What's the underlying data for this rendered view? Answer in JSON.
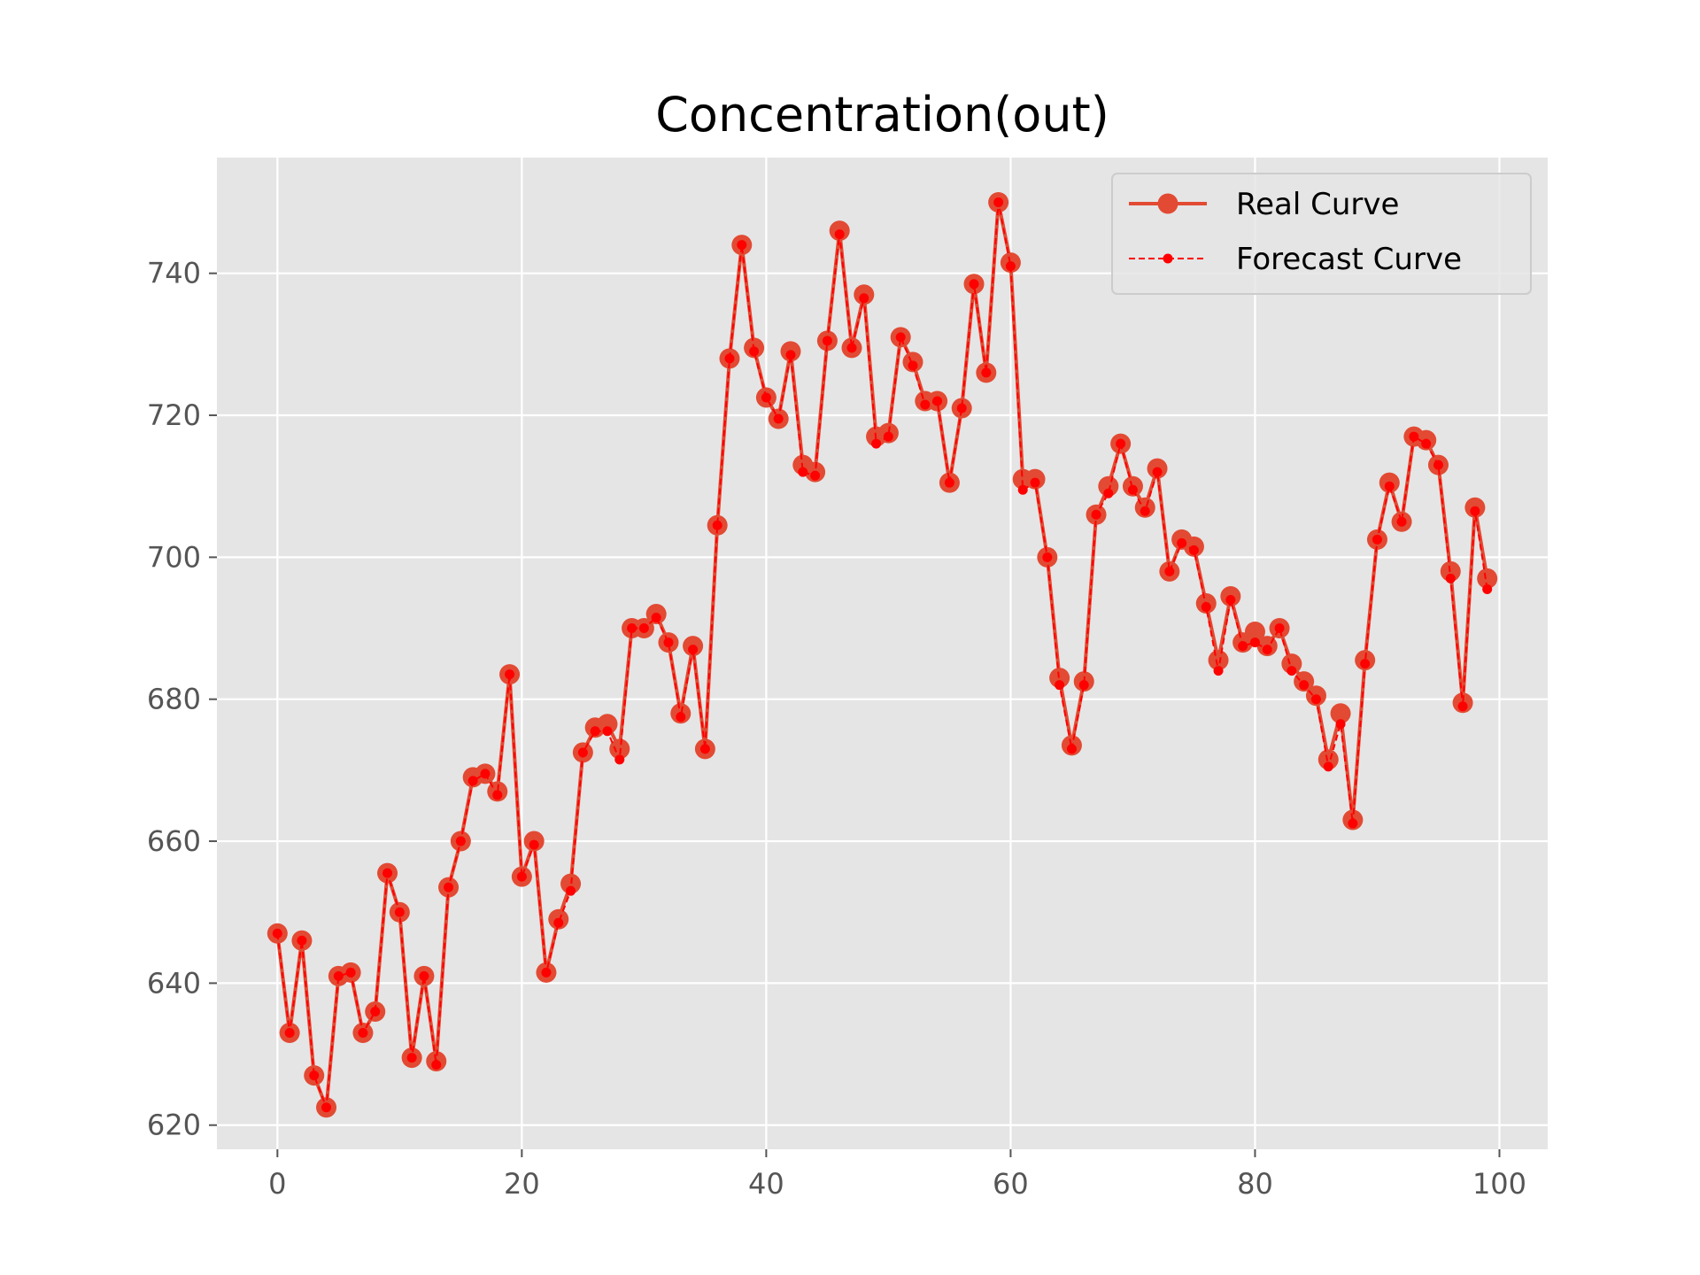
{
  "chart_data": {
    "type": "line",
    "title": "Concentration(out)",
    "xlabel": "",
    "ylabel": "",
    "xlim": [
      -4.95,
      103.95
    ],
    "ylim": [
      616.6,
      756.3
    ],
    "x_ticks": [
      0,
      20,
      40,
      60,
      80,
      100
    ],
    "y_ticks": [
      620,
      640,
      660,
      680,
      700,
      720,
      740
    ],
    "grid": true,
    "legend_position": "top-right",
    "x": [
      0,
      1,
      2,
      3,
      4,
      5,
      6,
      7,
      8,
      9,
      10,
      11,
      12,
      13,
      14,
      15,
      16,
      17,
      18,
      19,
      20,
      21,
      22,
      23,
      24,
      25,
      26,
      27,
      28,
      29,
      30,
      31,
      32,
      33,
      34,
      35,
      36,
      37,
      38,
      39,
      40,
      41,
      42,
      43,
      44,
      45,
      46,
      47,
      48,
      49,
      50,
      51,
      52,
      53,
      54,
      55,
      56,
      57,
      58,
      59,
      60,
      61,
      62,
      63,
      64,
      65,
      66,
      67,
      68,
      69,
      70,
      71,
      72,
      73,
      74,
      75,
      76,
      77,
      78,
      79,
      80,
      81,
      82,
      83,
      84,
      85,
      86,
      87,
      88,
      89,
      90,
      91,
      92,
      93,
      94,
      95,
      96,
      97,
      98,
      99
    ],
    "series": [
      {
        "name": "Real Curve",
        "color": "#E24A33",
        "values": [
          647,
          633,
          646,
          627,
          622.5,
          641,
          641.5,
          633,
          636,
          655.5,
          650,
          629.5,
          641,
          629,
          653.5,
          660,
          669,
          669.5,
          667,
          683.5,
          655,
          660,
          641.5,
          649,
          654,
          672.5,
          676,
          676.5,
          673,
          690,
          690,
          692,
          688,
          678,
          687.5,
          673,
          704.5,
          728,
          744,
          729.5,
          722.5,
          719.5,
          729,
          713,
          712,
          730.5,
          746,
          729.5,
          737,
          717,
          717.5,
          731,
          727.5,
          722,
          722,
          710.5,
          721,
          738.5,
          726,
          750,
          741.5,
          711,
          711,
          700,
          683,
          673.5,
          682.5,
          706,
          710,
          716,
          710,
          707,
          712.5,
          698,
          702.5,
          701.5,
          693.5,
          685.5,
          694.5,
          688,
          689.5,
          687.5,
          690,
          685,
          682.5,
          680.5,
          671.5,
          678,
          663,
          685.5,
          702.5,
          710.5,
          705,
          717,
          716.5,
          713,
          698,
          679.5,
          707,
          697
        ]
      },
      {
        "name": "Forecast Curve",
        "color": "#FF0000",
        "values": [
          647,
          633,
          646,
          627,
          622.5,
          641,
          641.5,
          633,
          636,
          655.5,
          650,
          629.5,
          641,
          628.5,
          653.5,
          660,
          668.5,
          669.5,
          666.5,
          683.5,
          655,
          659.5,
          641.5,
          648.5,
          653,
          672.5,
          675.5,
          675.5,
          671.5,
          690,
          690,
          691.5,
          688,
          677.5,
          687,
          673,
          704.5,
          728,
          744,
          729,
          722.5,
          719.5,
          728.5,
          712,
          711.5,
          730.5,
          745.5,
          729.5,
          736.5,
          716,
          717,
          731,
          727,
          721.5,
          722,
          710.5,
          721,
          738.5,
          726,
          750,
          741,
          709.5,
          710.5,
          700,
          682,
          673,
          682,
          706,
          709,
          716,
          709.5,
          706.5,
          712,
          698,
          702,
          701,
          693,
          684,
          694,
          687.5,
          688,
          687,
          690,
          684,
          682,
          680,
          670.5,
          676.5,
          662.5,
          685,
          702.5,
          710,
          705,
          717,
          716,
          713,
          697,
          679,
          706.5,
          695.5
        ]
      }
    ]
  }
}
